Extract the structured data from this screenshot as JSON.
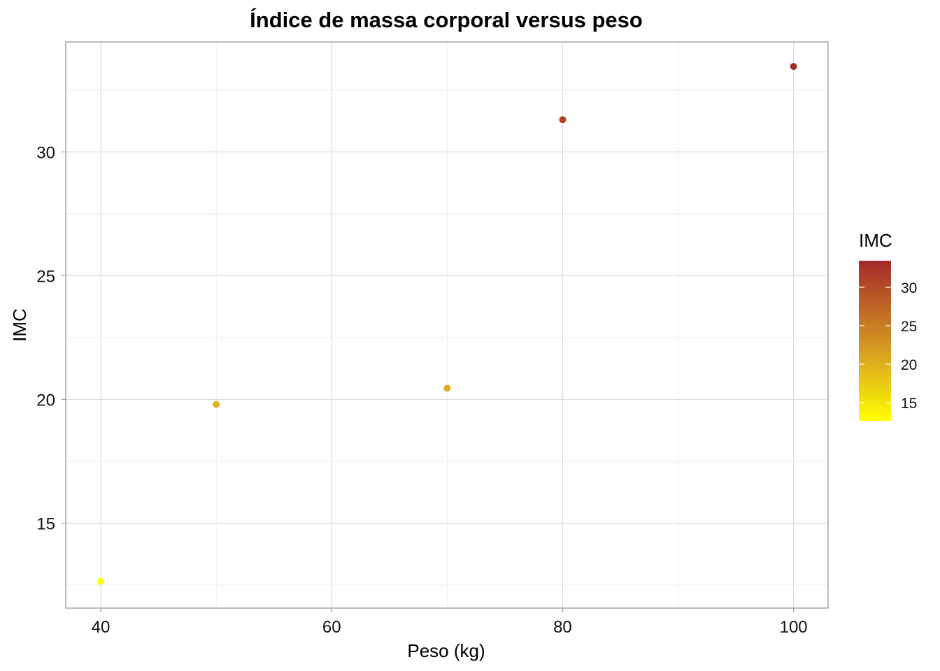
{
  "chart_data": {
    "type": "scatter",
    "title": "Índice de massa corporal versus peso",
    "xlabel": "Peso (kg)",
    "ylabel": "IMC",
    "xlim": [
      36.97,
      102.99
    ],
    "ylim": [
      11.57,
      34.44
    ],
    "x_ticks": [
      40,
      60,
      80,
      100
    ],
    "x_tick_labels": [
      "40",
      "60",
      "80",
      "100"
    ],
    "x_minor_ticks": [
      50,
      70,
      90
    ],
    "y_ticks": [
      15,
      20,
      25,
      30
    ],
    "y_tick_labels": [
      "15",
      "20",
      "25",
      "30"
    ],
    "y_minor_ticks": [
      12.5,
      17.5,
      22.5,
      27.5,
      32.5
    ],
    "grid": true,
    "points": [
      {
        "x": 40,
        "y": 12.65
      },
      {
        "x": 50,
        "y": 19.8
      },
      {
        "x": 70,
        "y": 20.45
      },
      {
        "x": 80,
        "y": 31.3
      },
      {
        "x": 100,
        "y": 33.45
      }
    ],
    "legend": {
      "title": "IMC",
      "position": "right",
      "type": "colorbar",
      "range": [
        12.65,
        33.45
      ],
      "ticks": [
        15,
        20,
        25,
        30
      ],
      "tick_labels": [
        "15",
        "20",
        "25",
        "30"
      ],
      "low_color": "#FFFF00",
      "mid_color": "#DAA520",
      "high_color": "#A52A2A"
    },
    "colors": {
      "grid_major": "#dcdcdc",
      "grid_minor": "#ececec",
      "panel_border": "#a0a0a0"
    }
  }
}
